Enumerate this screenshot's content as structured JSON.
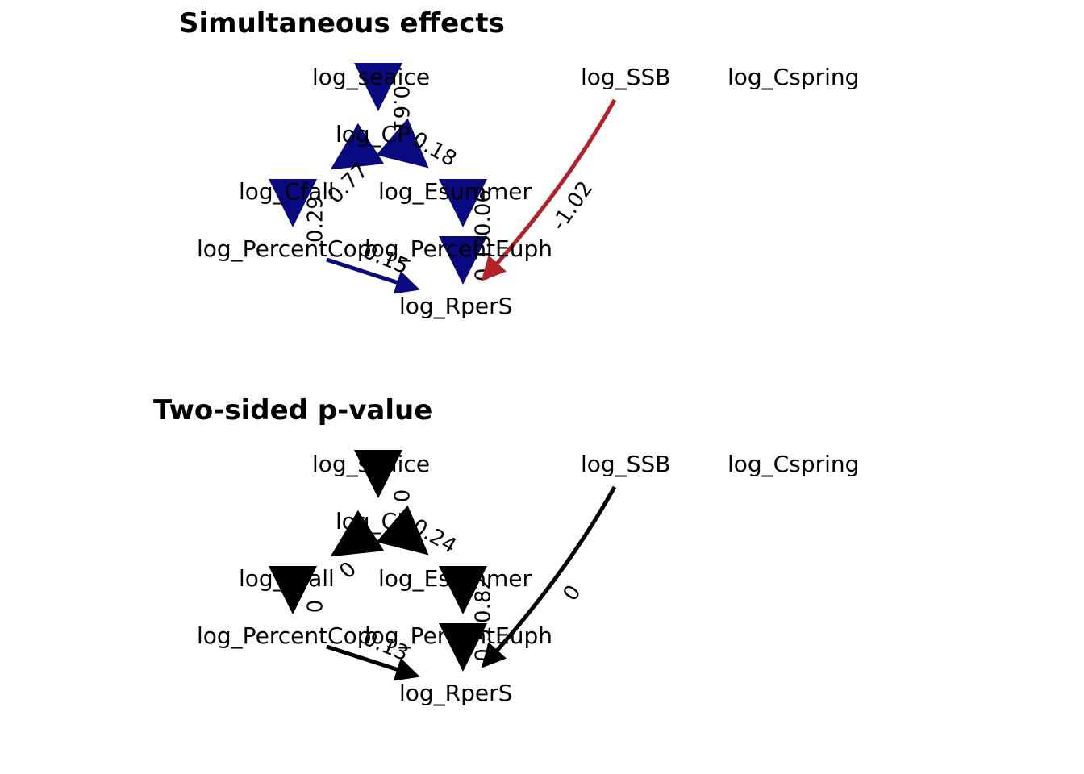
{
  "colors": {
    "positive": "#0A0A80",
    "negative": "#B22228",
    "neutral": "#000000"
  },
  "panels": [
    {
      "title": "Simultaneous effects",
      "nodes": {
        "log_seaice": "log_seaice",
        "log_SSB": "log_SSB",
        "log_Cspring": "log_Cspring",
        "log_CP": "log_CP",
        "log_Cfall": "log_Cfall",
        "log_Esummer": "log_Esummer",
        "log_PercentCop": "log_PercentCop",
        "log_PercentEuph": "log_PercentEuph",
        "log_RperS": "log_RperS"
      },
      "edges": [
        {
          "from": "log_seaice",
          "to": "log_CP",
          "label": "0.61",
          "sign": "positive"
        },
        {
          "from": "log_CP",
          "to": "log_Cfall",
          "label": "0.77",
          "sign": "positive"
        },
        {
          "from": "log_CP",
          "to": "log_Esummer",
          "label": "0.18",
          "sign": "positive"
        },
        {
          "from": "log_Cfall",
          "to": "log_PercentCop",
          "label": "0.29",
          "sign": "positive"
        },
        {
          "from": "log_Esummer",
          "to": "log_PercentEuph",
          "label": "0.06",
          "sign": "positive"
        },
        {
          "from": "log_PercentCop",
          "to": "log_RperS",
          "label": "0.15",
          "sign": "positive"
        },
        {
          "from": "log_PercentEuph",
          "to": "log_RperS",
          "label": "0.13",
          "sign": "positive"
        },
        {
          "from": "log_SSB",
          "to": "log_RperS",
          "label": "-1.02",
          "sign": "negative"
        }
      ]
    },
    {
      "title": "Two-sided p-value",
      "nodes": {
        "log_seaice": "log_seaice",
        "log_SSB": "log_SSB",
        "log_Cspring": "log_Cspring",
        "log_CP": "log_CP",
        "log_Cfall": "log_Cfall",
        "log_Esummer": "log_Esummer",
        "log_PercentCop": "log_PercentCop",
        "log_PercentEuph": "log_PercentEuph",
        "log_RperS": "log_RperS"
      },
      "edges": [
        {
          "from": "log_seaice",
          "to": "log_CP",
          "label": "0",
          "sign": "neutral"
        },
        {
          "from": "log_CP",
          "to": "log_Cfall",
          "label": "0",
          "sign": "neutral"
        },
        {
          "from": "log_CP",
          "to": "log_Esummer",
          "label": "0.24",
          "sign": "neutral"
        },
        {
          "from": "log_Cfall",
          "to": "log_PercentCop",
          "label": "0",
          "sign": "neutral"
        },
        {
          "from": "log_Esummer",
          "to": "log_PercentEuph",
          "label": "0.82",
          "sign": "neutral"
        },
        {
          "from": "log_PercentCop",
          "to": "log_RperS",
          "label": "0.13",
          "sign": "neutral"
        },
        {
          "from": "log_PercentEuph",
          "to": "log_RperS",
          "label": "0.5",
          "sign": "neutral"
        },
        {
          "from": "log_SSB",
          "to": "log_RperS",
          "label": "0",
          "sign": "neutral"
        }
      ]
    }
  ]
}
